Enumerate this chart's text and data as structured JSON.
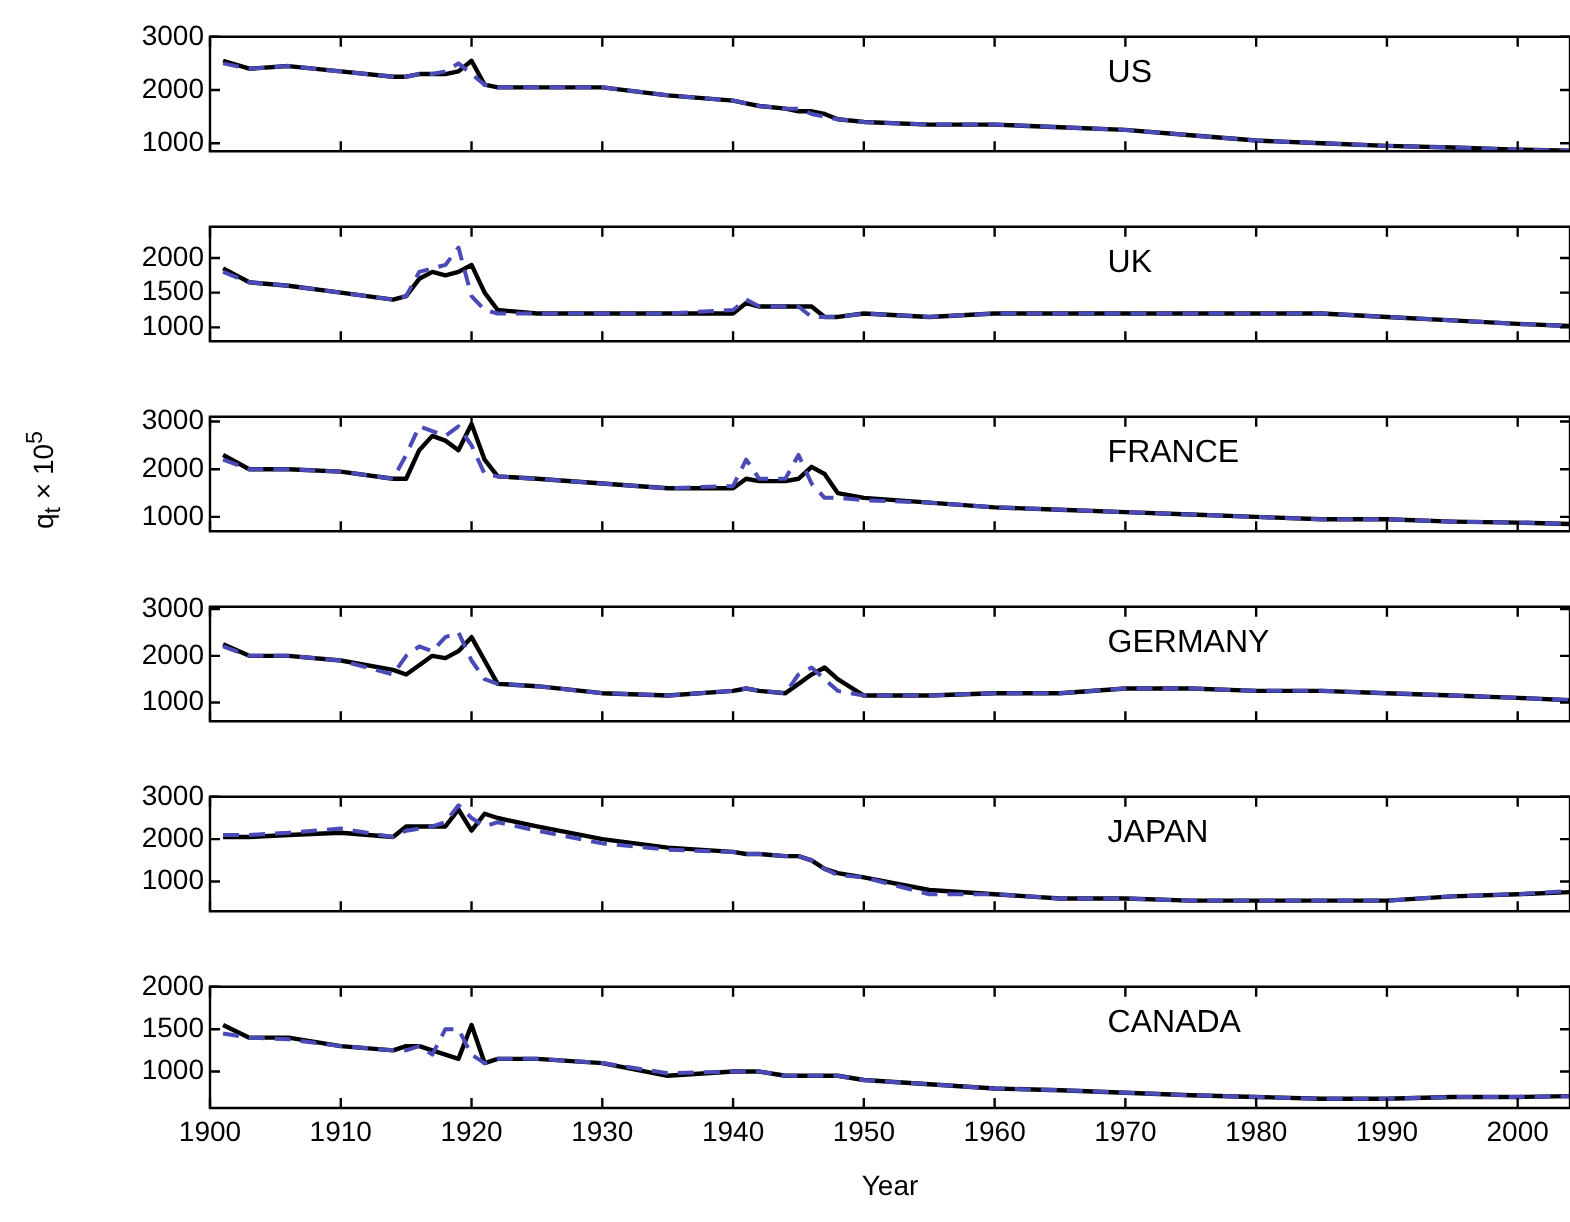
{
  "chart_data": [
    {
      "type": "line",
      "annotations": [
        "US"
      ],
      "x": [
        1901,
        1903,
        1906,
        1910,
        1914,
        1915,
        1916,
        1917,
        1918,
        1919,
        1920,
        1921,
        1922,
        1925,
        1930,
        1935,
        1940,
        1941,
        1942,
        1944,
        1945,
        1946,
        1947,
        1948,
        1950,
        1955,
        1960,
        1965,
        1970,
        1975,
        1980,
        1985,
        1990,
        1995,
        2000,
        2004
      ],
      "xlim": [
        1900,
        2004
      ],
      "xticks": [
        1900,
        1910,
        1920,
        1930,
        1940,
        1950,
        1960,
        1970,
        1980,
        1990,
        2000
      ],
      "ylim": [
        850,
        3000
      ],
      "yticks": [
        1000,
        2000,
        3000
      ],
      "tick_labels": "y",
      "grid": false,
      "legend": false,
      "series": [
        {
          "color": "#000000",
          "line_style": "solid",
          "values": [
            2550,
            2400,
            2450,
            2350,
            2250,
            2250,
            2300,
            2300,
            2300,
            2350,
            2550,
            2100,
            2050,
            2050,
            2050,
            1900,
            1800,
            1750,
            1700,
            1650,
            1600,
            1600,
            1550,
            1450,
            1400,
            1350,
            1350,
            1300,
            1250,
            1150,
            1050,
            1000,
            950,
            920,
            880,
            860
          ]
        },
        {
          "color": "#4a4ab8",
          "line_style": "dashed",
          "values": [
            2500,
            2400,
            2450,
            2350,
            2250,
            2250,
            2300,
            2300,
            2350,
            2500,
            2300,
            2100,
            2050,
            2050,
            2050,
            1900,
            1800,
            1750,
            1700,
            1650,
            1650,
            1550,
            1500,
            1450,
            1400,
            1350,
            1350,
            1300,
            1250,
            1150,
            1050,
            1000,
            950,
            920,
            880,
            860
          ]
        }
      ]
    },
    {
      "type": "line",
      "annotations": [
        "UK"
      ],
      "x": [
        1901,
        1903,
        1906,
        1910,
        1914,
        1915,
        1916,
        1917,
        1918,
        1919,
        1920,
        1921,
        1922,
        1925,
        1930,
        1935,
        1940,
        1941,
        1942,
        1944,
        1945,
        1946,
        1947,
        1948,
        1950,
        1955,
        1960,
        1965,
        1970,
        1975,
        1980,
        1985,
        1990,
        1995,
        2000,
        2004
      ],
      "xlim": [
        1900,
        2004
      ],
      "xticks": [
        1900,
        1910,
        1920,
        1930,
        1940,
        1950,
        1960,
        1970,
        1980,
        1990,
        2000
      ],
      "ylim": [
        800,
        2450
      ],
      "yticks": [
        1000,
        1500,
        2000
      ],
      "tick_labels": "y",
      "grid": false,
      "legend": false,
      "series": [
        {
          "color": "#000000",
          "line_style": "solid",
          "values": [
            1850,
            1650,
            1600,
            1500,
            1400,
            1450,
            1700,
            1800,
            1750,
            1800,
            1900,
            1500,
            1250,
            1200,
            1200,
            1200,
            1200,
            1350,
            1300,
            1300,
            1300,
            1300,
            1150,
            1150,
            1200,
            1150,
            1200,
            1200,
            1200,
            1200,
            1200,
            1200,
            1150,
            1100,
            1050,
            1020
          ]
        },
        {
          "color": "#4a4ab8",
          "line_style": "dashed",
          "values": [
            1800,
            1650,
            1600,
            1500,
            1400,
            1450,
            1800,
            1850,
            1900,
            2150,
            1450,
            1250,
            1200,
            1200,
            1200,
            1200,
            1250,
            1400,
            1300,
            1300,
            1300,
            1150,
            1150,
            1150,
            1200,
            1150,
            1200,
            1200,
            1200,
            1200,
            1200,
            1200,
            1150,
            1100,
            1050,
            1020
          ]
        }
      ]
    },
    {
      "type": "line",
      "annotations": [
        "FRANCE"
      ],
      "ylabel": "q$_{t}$ × 10$^{5}$",
      "x": [
        1901,
        1903,
        1906,
        1910,
        1914,
        1915,
        1916,
        1917,
        1918,
        1919,
        1920,
        1921,
        1922,
        1925,
        1930,
        1935,
        1940,
        1941,
        1942,
        1944,
        1945,
        1946,
        1947,
        1948,
        1950,
        1955,
        1960,
        1965,
        1970,
        1975,
        1980,
        1985,
        1990,
        1995,
        2000,
        2004
      ],
      "xlim": [
        1900,
        2004
      ],
      "xticks": [
        1900,
        1910,
        1920,
        1930,
        1940,
        1950,
        1960,
        1970,
        1980,
        1990,
        2000
      ],
      "ylim": [
        700,
        3100
      ],
      "yticks": [
        1000,
        2000,
        3000
      ],
      "tick_labels": "y",
      "grid": false,
      "legend": false,
      "series": [
        {
          "color": "#000000",
          "line_style": "solid",
          "values": [
            2300,
            2000,
            2000,
            1950,
            1800,
            1800,
            2400,
            2700,
            2600,
            2400,
            2950,
            2200,
            1850,
            1800,
            1700,
            1600,
            1600,
            1800,
            1750,
            1750,
            1800,
            2050,
            1900,
            1500,
            1400,
            1300,
            1200,
            1150,
            1100,
            1050,
            1000,
            950,
            950,
            900,
            880,
            850
          ]
        },
        {
          "color": "#4a4ab8",
          "line_style": "dashed",
          "values": [
            2200,
            2000,
            2000,
            1950,
            1800,
            2300,
            2900,
            2800,
            2700,
            2900,
            2500,
            1900,
            1850,
            1800,
            1700,
            1600,
            1650,
            2200,
            1800,
            1800,
            2300,
            1700,
            1400,
            1400,
            1350,
            1300,
            1200,
            1150,
            1100,
            1050,
            1000,
            950,
            950,
            900,
            880,
            850
          ]
        }
      ]
    },
    {
      "type": "line",
      "annotations": [
        "GERMANY"
      ],
      "x": [
        1901,
        1903,
        1906,
        1910,
        1914,
        1915,
        1916,
        1917,
        1918,
        1919,
        1920,
        1921,
        1922,
        1925,
        1930,
        1935,
        1940,
        1941,
        1942,
        1944,
        1945,
        1946,
        1947,
        1948,
        1950,
        1955,
        1960,
        1965,
        1970,
        1975,
        1980,
        1985,
        1990,
        1995,
        2000,
        2004
      ],
      "xlim": [
        1900,
        2004
      ],
      "xticks": [
        1900,
        1910,
        1920,
        1930,
        1940,
        1950,
        1960,
        1970,
        1980,
        1990,
        2000
      ],
      "ylim": [
        600,
        3050
      ],
      "yticks": [
        1000,
        2000,
        3000
      ],
      "tick_labels": "y",
      "grid": false,
      "legend": false,
      "series": [
        {
          "color": "#000000",
          "line_style": "solid",
          "values": [
            2250,
            2000,
            2000,
            1900,
            1700,
            1600,
            1800,
            2000,
            1950,
            2100,
            2400,
            1900,
            1400,
            1350,
            1200,
            1150,
            1250,
            1300,
            1250,
            1200,
            1400,
            1600,
            1750,
            1500,
            1150,
            1150,
            1200,
            1200,
            1300,
            1300,
            1250,
            1250,
            1200,
            1150,
            1100,
            1050
          ]
        },
        {
          "color": "#4a4ab8",
          "line_style": "dashed",
          "values": [
            2200,
            2000,
            2000,
            1900,
            1600,
            2000,
            2200,
            2100,
            2400,
            2500,
            1900,
            1500,
            1400,
            1350,
            1200,
            1150,
            1250,
            1300,
            1250,
            1200,
            1600,
            1750,
            1500,
            1250,
            1150,
            1150,
            1200,
            1200,
            1300,
            1300,
            1250,
            1250,
            1200,
            1150,
            1100,
            1050
          ]
        }
      ]
    },
    {
      "type": "line",
      "annotations": [
        "JAPAN"
      ],
      "x": [
        1901,
        1903,
        1906,
        1910,
        1914,
        1915,
        1916,
        1917,
        1918,
        1919,
        1920,
        1921,
        1922,
        1925,
        1930,
        1935,
        1940,
        1941,
        1942,
        1944,
        1945,
        1946,
        1947,
        1948,
        1950,
        1955,
        1960,
        1965,
        1970,
        1975,
        1980,
        1985,
        1990,
        1995,
        2000,
        2004
      ],
      "xlim": [
        1900,
        2004
      ],
      "xticks": [
        1900,
        1910,
        1920,
        1930,
        1940,
        1950,
        1960,
        1970,
        1980,
        1990,
        2000
      ],
      "ylim": [
        300,
        3000
      ],
      "yticks": [
        1000,
        2000,
        3000
      ],
      "tick_labels": "y",
      "grid": false,
      "legend": false,
      "series": [
        {
          "color": "#000000",
          "line_style": "solid",
          "values": [
            2050,
            2050,
            2100,
            2150,
            2050,
            2300,
            2300,
            2300,
            2300,
            2700,
            2200,
            2600,
            2500,
            2300,
            2000,
            1800,
            1700,
            1650,
            1650,
            1600,
            1600,
            1500,
            1300,
            1200,
            1100,
            800,
            700,
            600,
            600,
            550,
            550,
            550,
            550,
            650,
            700,
            750
          ]
        },
        {
          "color": "#4a4ab8",
          "line_style": "dashed",
          "values": [
            2100,
            2100,
            2150,
            2250,
            2050,
            2200,
            2250,
            2300,
            2400,
            2800,
            2500,
            2300,
            2400,
            2200,
            1900,
            1750,
            1700,
            1650,
            1650,
            1600,
            1600,
            1500,
            1300,
            1150,
            1100,
            700,
            700,
            600,
            600,
            550,
            550,
            550,
            550,
            650,
            700,
            780
          ]
        }
      ]
    },
    {
      "type": "line",
      "annotations": [
        "CANADA"
      ],
      "xlabel": "Year",
      "x": [
        1901,
        1903,
        1906,
        1910,
        1914,
        1915,
        1916,
        1917,
        1918,
        1919,
        1920,
        1921,
        1922,
        1925,
        1930,
        1935,
        1940,
        1941,
        1942,
        1944,
        1945,
        1946,
        1947,
        1948,
        1950,
        1955,
        1960,
        1965,
        1970,
        1975,
        1980,
        1985,
        1990,
        1995,
        2000,
        2004
      ],
      "xlim": [
        1900,
        2004
      ],
      "xticks": [
        1900,
        1910,
        1920,
        1930,
        1940,
        1950,
        1960,
        1970,
        1980,
        1990,
        2000
      ],
      "ylim": [
        570,
        2000
      ],
      "yticks": [
        1000,
        1500,
        2000
      ],
      "grid": false,
      "legend": false,
      "series": [
        {
          "color": "#000000",
          "line_style": "solid",
          "values": [
            1550,
            1400,
            1400,
            1300,
            1250,
            1300,
            1300,
            1250,
            1200,
            1150,
            1550,
            1100,
            1150,
            1150,
            1100,
            950,
            1000,
            1000,
            1000,
            950,
            950,
            950,
            950,
            950,
            900,
            850,
            800,
            780,
            750,
            720,
            700,
            680,
            680,
            700,
            700,
            710
          ]
        },
        {
          "color": "#4a4ab8",
          "line_style": "dashed",
          "values": [
            1450,
            1400,
            1380,
            1300,
            1250,
            1250,
            1300,
            1200,
            1500,
            1500,
            1200,
            1100,
            1150,
            1150,
            1100,
            980,
            1000,
            1000,
            1000,
            950,
            950,
            950,
            950,
            950,
            900,
            850,
            800,
            780,
            750,
            720,
            700,
            680,
            680,
            700,
            700,
            710
          ]
        }
      ]
    }
  ]
}
